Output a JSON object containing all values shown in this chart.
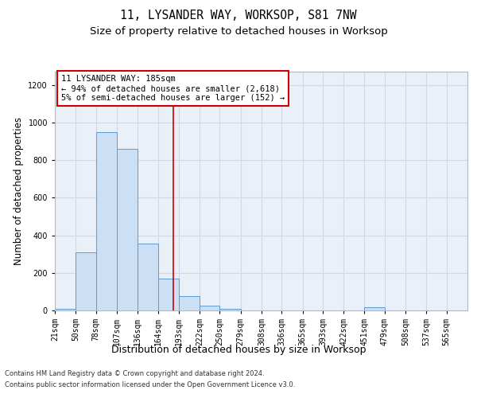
{
  "title": "11, LYSANDER WAY, WORKSOP, S81 7NW",
  "subtitle": "Size of property relative to detached houses in Worksop",
  "xlabel": "Distribution of detached houses by size in Worksop",
  "ylabel": "Number of detached properties",
  "footer_line1": "Contains HM Land Registry data © Crown copyright and database right 2024.",
  "footer_line2": "Contains public sector information licensed under the Open Government Licence v3.0.",
  "annotation_line1": "11 LYSANDER WAY: 185sqm",
  "annotation_line2": "← 94% of detached houses are smaller (2,618)",
  "annotation_line3": "5% of semi-detached houses are larger (152) →",
  "bar_edges": [
    21,
    50,
    78,
    107,
    136,
    164,
    193,
    222,
    250,
    279,
    308,
    336,
    365,
    393,
    422,
    451,
    479,
    508,
    537,
    565,
    594
  ],
  "bar_heights": [
    10,
    307,
    950,
    860,
    355,
    170,
    75,
    25,
    10,
    0,
    0,
    0,
    0,
    0,
    0,
    15,
    0,
    0,
    0,
    0
  ],
  "bar_color": "#cce0f5",
  "bar_edge_color": "#5b9bd5",
  "vline_color": "#cc0000",
  "vline_x": 185,
  "annotation_box_color": "#cc0000",
  "ylim": [
    0,
    1270
  ],
  "yticks": [
    0,
    200,
    400,
    600,
    800,
    1000,
    1200
  ],
  "grid_color": "#d0d8e8",
  "plot_bg_color": "#eaf0f8",
  "title_fontsize": 10.5,
  "subtitle_fontsize": 9.5,
  "tick_label_fontsize": 7,
  "ylabel_fontsize": 8.5,
  "xlabel_fontsize": 9,
  "annotation_fontsize": 7.5,
  "footer_fontsize": 6
}
